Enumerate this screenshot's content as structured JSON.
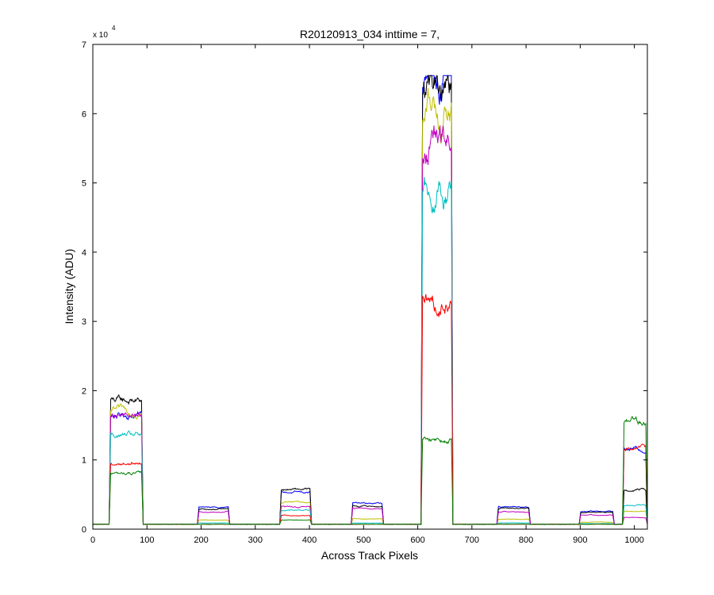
{
  "chart_data": {
    "type": "line",
    "title": "R20120913_034 inttime = 7,",
    "xlabel": "Across Track Pixels",
    "ylabel": "Intensity (ADU)",
    "y_exponent_label": "x 10",
    "y_exponent": "4",
    "xlim": [
      0,
      1024
    ],
    "ylim": [
      0,
      70000
    ],
    "xticks": [
      0,
      100,
      200,
      300,
      400,
      500,
      600,
      700,
      800,
      900,
      1000
    ],
    "yticks": [
      0,
      1,
      2,
      3,
      4,
      5,
      6,
      7
    ],
    "grid": false,
    "legend": "none",
    "baseline": 700,
    "regions": [
      {
        "start": 30,
        "end": 93
      },
      {
        "start": 193,
        "end": 253
      },
      {
        "start": 345,
        "end": 404
      },
      {
        "start": 477,
        "end": 537
      },
      {
        "start": 606,
        "end": 665
      },
      {
        "start": 746,
        "end": 808
      },
      {
        "start": 898,
        "end": 963
      },
      {
        "start": 978,
        "end": 1024
      }
    ],
    "series": [
      {
        "color": "#0000ff",
        "levels": [
          16500,
          3200,
          5300,
          3700,
          65500,
          3200,
          2600,
          11500
        ]
      },
      {
        "color": "#000000",
        "levels": [
          18500,
          2900,
          5700,
          3300,
          65500,
          3000,
          2400,
          5800
        ]
      },
      {
        "color": "#bfbf00",
        "levels": [
          17000,
          1300,
          3900,
          1500,
          60000,
          1400,
          1000,
          2600
        ]
      },
      {
        "color": "#bf00bf",
        "levels": [
          16200,
          2500,
          3200,
          3000,
          55000,
          2500,
          2000,
          1700
        ]
      },
      {
        "color": "#00bfbf",
        "levels": [
          13500,
          900,
          2800,
          900,
          50000,
          900,
          800,
          3400
        ]
      },
      {
        "color": "#ff0000",
        "levels": [
          9500,
          700,
          2000,
          700,
          33000,
          700,
          700,
          11500
        ]
      },
      {
        "color": "#008000",
        "levels": [
          8000,
          700,
          1300,
          700,
          13000,
          700,
          700,
          15500
        ]
      }
    ]
  }
}
